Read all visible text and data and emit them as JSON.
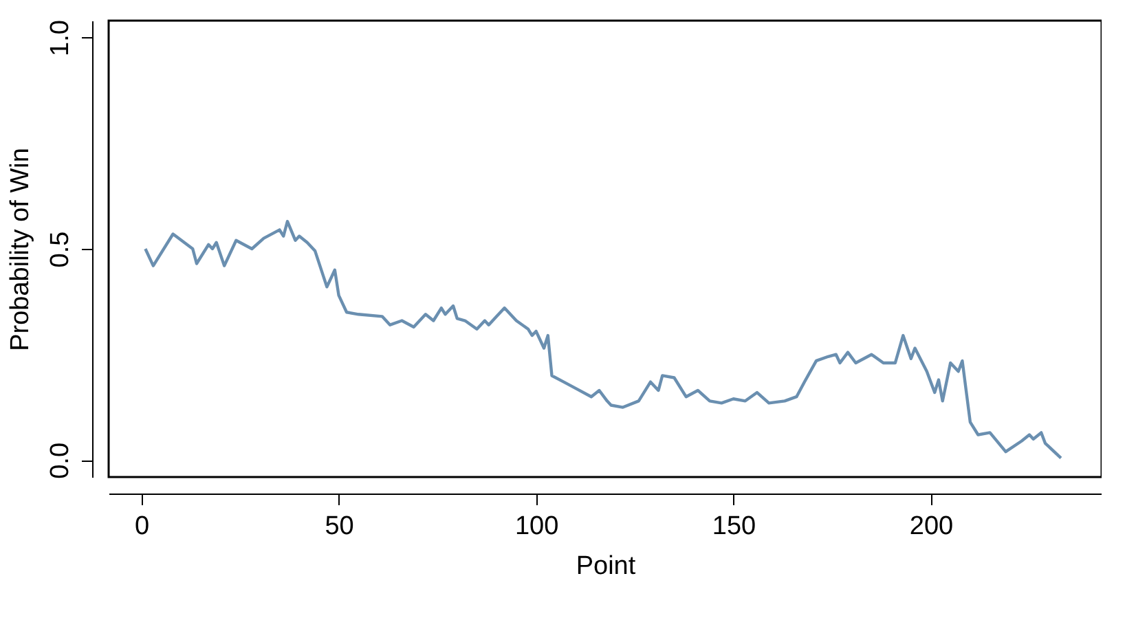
{
  "chart_data": {
    "type": "line",
    "xlabel": "Point",
    "ylabel": "Probability of Win",
    "xlim": [
      -8.3,
      243.3
    ],
    "ylim": [
      -0.04,
      1.04
    ],
    "xticks": [
      0,
      50,
      100,
      150,
      200
    ],
    "yticks": [
      {
        "value": 0,
        "label": "0.0"
      },
      {
        "value": 0.5,
        "label": "0.5"
      },
      {
        "value": 1,
        "label": "1.0"
      }
    ],
    "grid": false,
    "legend": false,
    "marker": "none",
    "line_style": "solid",
    "x": [
      1,
      3,
      8,
      13,
      14,
      17,
      18,
      19,
      21,
      24,
      28,
      31,
      35,
      36,
      37,
      39,
      40,
      42,
      44,
      47,
      49,
      50,
      52,
      55,
      61,
      63,
      66,
      69,
      72,
      74,
      76,
      77,
      79,
      80,
      82,
      85,
      87,
      88,
      90,
      92,
      95,
      98,
      99,
      100,
      102,
      103,
      104,
      107,
      110,
      114,
      116,
      118,
      119,
      122,
      126,
      129,
      131,
      132,
      135,
      138,
      141,
      144,
      147,
      150,
      153,
      156,
      159,
      163,
      166,
      168,
      171,
      174,
      176,
      177,
      179,
      181,
      185,
      188,
      191,
      193,
      195,
      196,
      199,
      201,
      202,
      203,
      205,
      207,
      208,
      210,
      212,
      215,
      219,
      223,
      225,
      226,
      228,
      229,
      233
    ],
    "series": [
      {
        "color": "#6a8fb0",
        "values": [
          0.5,
          0.46,
          0.535,
          0.5,
          0.465,
          0.51,
          0.5,
          0.515,
          0.46,
          0.52,
          0.5,
          0.525,
          0.545,
          0.53,
          0.565,
          0.52,
          0.53,
          0.515,
          0.495,
          0.41,
          0.45,
          0.39,
          0.35,
          0.345,
          0.34,
          0.32,
          0.33,
          0.315,
          0.345,
          0.33,
          0.36,
          0.345,
          0.365,
          0.335,
          0.33,
          0.31,
          0.33,
          0.32,
          0.34,
          0.36,
          0.33,
          0.31,
          0.295,
          0.305,
          0.265,
          0.295,
          0.2,
          0.185,
          0.17,
          0.15,
          0.165,
          0.14,
          0.13,
          0.125,
          0.14,
          0.185,
          0.165,
          0.2,
          0.195,
          0.15,
          0.165,
          0.14,
          0.135,
          0.145,
          0.14,
          0.16,
          0.135,
          0.14,
          0.15,
          0.185,
          0.235,
          0.245,
          0.25,
          0.23,
          0.255,
          0.23,
          0.25,
          0.23,
          0.23,
          0.295,
          0.24,
          0.265,
          0.21,
          0.16,
          0.19,
          0.14,
          0.23,
          0.21,
          0.235,
          0.09,
          0.06,
          0.065,
          0.02,
          0.045,
          0.06,
          0.05,
          0.065,
          0.04,
          0.005
        ]
      }
    ]
  }
}
